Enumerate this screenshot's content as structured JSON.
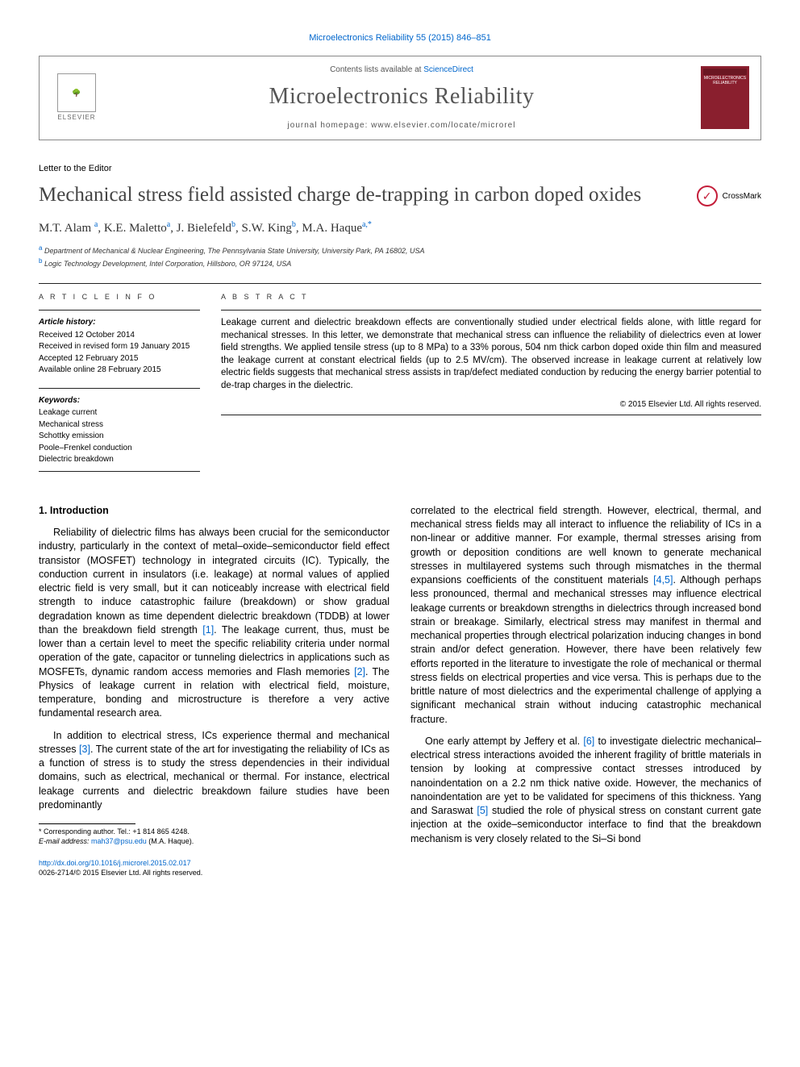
{
  "top_citation": "Microelectronics Reliability 55 (2015) 846–851",
  "header": {
    "contents_prefix": "Contents lists available at ",
    "contents_link": "ScienceDirect",
    "journal_name": "Microelectronics Reliability",
    "homepage_label": "journal homepage: www.elsevier.com/locate/microrel",
    "publisher_name": "ELSEVIER",
    "cover_title": "MICROELECTRONICS RELIABILITY"
  },
  "article": {
    "type_label": "Letter to the Editor",
    "title": "Mechanical stress field assisted charge de-trapping in carbon doped oxides",
    "crossmark_label": "CrossMark",
    "authors_html": "M.T. Alam <sup>a</sup>, K.E. Maletto<sup>a</sup>, J. Bielefeld<sup>b</sup>, S.W. King<sup>b</sup>, M.A. Haque<sup>a,*</sup>",
    "affiliations": [
      {
        "sup": "a",
        "text": "Department of Mechanical & Nuclear Engineering, The Pennsylvania State University, University Park, PA 16802, USA"
      },
      {
        "sup": "b",
        "text": "Logic Technology Development, Intel Corporation, Hillsboro, OR 97124, USA"
      }
    ]
  },
  "info": {
    "article_info_label": "A R T I C L E   I N F O",
    "history_heading": "Article history:",
    "history": [
      "Received 12 October 2014",
      "Received in revised form 19 January 2015",
      "Accepted 12 February 2015",
      "Available online 28 February 2015"
    ],
    "keywords_heading": "Keywords:",
    "keywords": [
      "Leakage current",
      "Mechanical stress",
      "Schottky emission",
      "Poole–Frenkel conduction",
      "Dielectric breakdown"
    ]
  },
  "abstract": {
    "label": "A B S T R A C T",
    "text": "Leakage current and dielectric breakdown effects are conventionally studied under electrical fields alone, with little regard for mechanical stresses. In this letter, we demonstrate that mechanical stress can influence the reliability of dielectrics even at lower field strengths. We applied tensile stress (up to 8 MPa) to a 33% porous, 504 nm thick carbon doped oxide thin film and measured the leakage current at constant electrical fields (up to 2.5 MV/cm). The observed increase in leakage current at relatively low electric fields suggests that mechanical stress assists in trap/defect mediated conduction by reducing the energy barrier potential to de-trap charges in the dielectric.",
    "copyright": "© 2015 Elsevier Ltd. All rights reserved."
  },
  "body": {
    "intro_heading": "1. Introduction",
    "col1_p1": "Reliability of dielectric films has always been crucial for the semiconductor industry, particularly in the context of metal–oxide–semiconductor field effect transistor (MOSFET) technology in integrated circuits (IC). Typically, the conduction current in insulators (i.e. leakage) at normal values of applied electric field is very small, but it can noticeably increase with electrical field strength to induce catastrophic failure (breakdown) or show gradual degradation known as time dependent dielectric breakdown (TDDB) at lower than the breakdown field strength [1]. The leakage current, thus, must be lower than a certain level to meet the specific reliability criteria under normal operation of the gate, capacitor or tunneling dielectrics in applications such as MOSFETs, dynamic random access memories and Flash memories [2]. The Physics of leakage current in relation with electrical field, moisture, temperature, bonding and microstructure is therefore a very active fundamental research area.",
    "col1_p2": "In addition to electrical stress, ICs experience thermal and mechanical stresses [3]. The current state of the art for investigating the reliability of ICs as a function of stress is to study the stress dependencies in their individual domains, such as electrical, mechanical or thermal. For instance, electrical leakage currents and dielectric breakdown failure studies have been predominantly",
    "col2_p1": "correlated to the electrical field strength. However, electrical, thermal, and mechanical stress fields may all interact to influence the reliability of ICs in a non-linear or additive manner. For example, thermal stresses arising from growth or deposition conditions are well known to generate mechanical stresses in multilayered systems such through mismatches in the thermal expansions coefficients of the constituent materials [4,5]. Although perhaps less pronounced, thermal and mechanical stresses may influence electrical leakage currents or breakdown strengths in dielectrics through increased bond strain or breakage. Similarly, electrical stress may manifest in thermal and mechanical properties through electrical polarization inducing changes in bond strain and/or defect generation. However, there have been relatively few efforts reported in the literature to investigate the role of mechanical or thermal stress fields on electrical properties and vice versa. This is perhaps due to the brittle nature of most dielectrics and the experimental challenge of applying a significant mechanical strain without inducing catastrophic mechanical fracture.",
    "col2_p2": "One early attempt by Jeffery et al. [6] to investigate dielectric mechanical–electrical stress interactions avoided the inherent fragility of brittle materials in tension by looking at compressive contact stresses introduced by nanoindentation on a 2.2 nm thick native oxide. However, the mechanics of nanoindentation are yet to be validated for specimens of this thickness. Yang and Saraswat [5] studied the role of physical stress on constant current gate injection at the oxide–semiconductor interface to find that the breakdown mechanism is very closely related to the Si–Si bond"
  },
  "footnote": {
    "corresponding": "* Corresponding author. Tel.: +1 814 865 4248.",
    "email_label": "E-mail address: ",
    "email": "mah37@psu.edu",
    "email_name": " (M.A. Haque)."
  },
  "footer": {
    "doi": "http://dx.doi.org/10.1016/j.microrel.2015.02.017",
    "issn_copyright": "0026-2714/© 2015 Elsevier Ltd. All rights reserved."
  },
  "refs": {
    "r1": "[1]",
    "r2": "[2]",
    "r3": "[3]",
    "r45": "[4,5]",
    "r5": "[5]",
    "r6": "[6]"
  },
  "colors": {
    "link": "#0066cc",
    "journal_cover": "#8a1f2e",
    "title_gray": "#444444",
    "crossmark_red": "#c41e3a"
  }
}
